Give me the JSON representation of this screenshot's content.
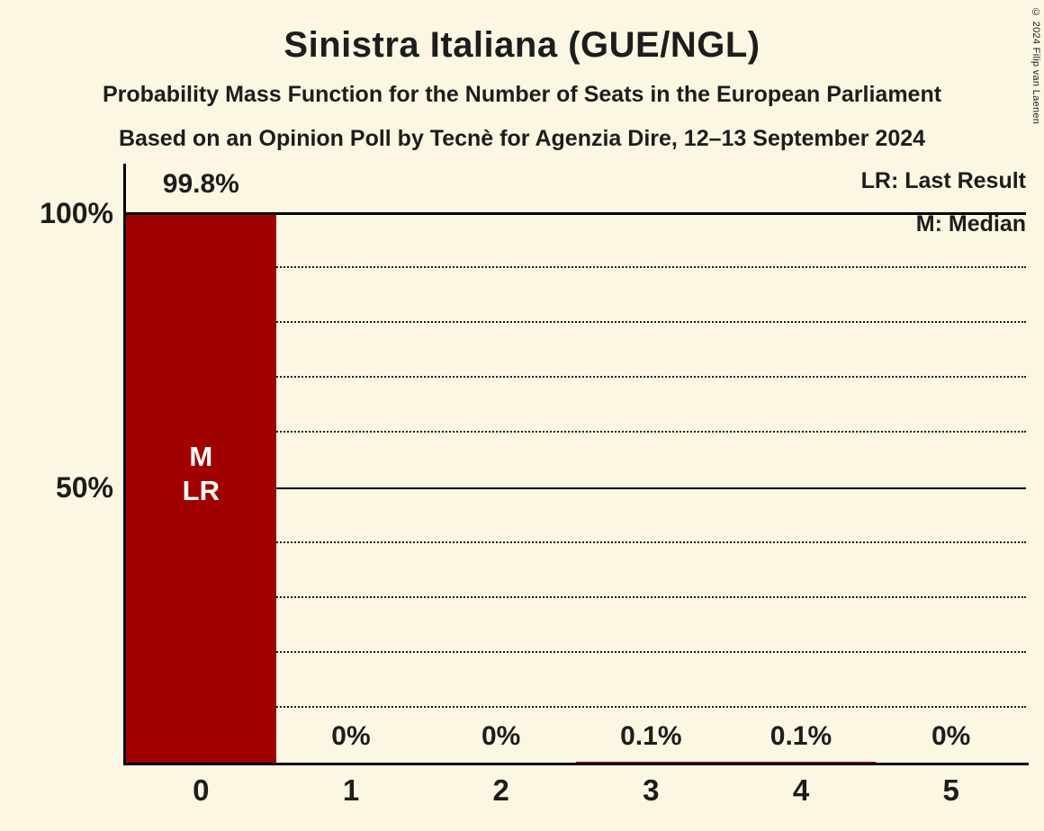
{
  "title": "Sinistra Italiana (GUE/NGL)",
  "subtitle": "Probability Mass Function for the Number of Seats in the European Parliament",
  "subtitle2": "Based on an Opinion Poll by Tecnè for Agenzia Dire, 12–13 September 2024",
  "copyright": "© 2024 Filip van Laenen",
  "legend": {
    "last_result": "LR: Last Result",
    "median": "M: Median"
  },
  "y_axis": {
    "label_100": "100%",
    "label_50": "50%"
  },
  "colors": {
    "background": "#fcf7e2",
    "bar": "#a00000",
    "text": "#1d1d1d"
  },
  "chart_data": {
    "type": "bar",
    "title": "Sinistra Italiana (GUE/NGL)",
    "categories": [
      "0",
      "1",
      "2",
      "3",
      "4",
      "5"
    ],
    "values": [
      99.8,
      0,
      0,
      0.1,
      0.1,
      0
    ],
    "value_labels": [
      "99.8%",
      "0%",
      "0%",
      "0.1%",
      "0.1%",
      "0%"
    ],
    "bar_annotations": [
      "M\nLR",
      "",
      "",
      "",
      "",
      ""
    ],
    "legend_entries": [
      "LR: Last Result",
      "M: Median"
    ],
    "ylim": [
      0,
      100
    ],
    "ytick_labels": [
      "100%",
      "50%"
    ],
    "gridline_step_percent": 10,
    "solid_gridlines_percent": [
      50,
      100
    ],
    "grid_style": "dotted",
    "legend_position": "top-right"
  }
}
